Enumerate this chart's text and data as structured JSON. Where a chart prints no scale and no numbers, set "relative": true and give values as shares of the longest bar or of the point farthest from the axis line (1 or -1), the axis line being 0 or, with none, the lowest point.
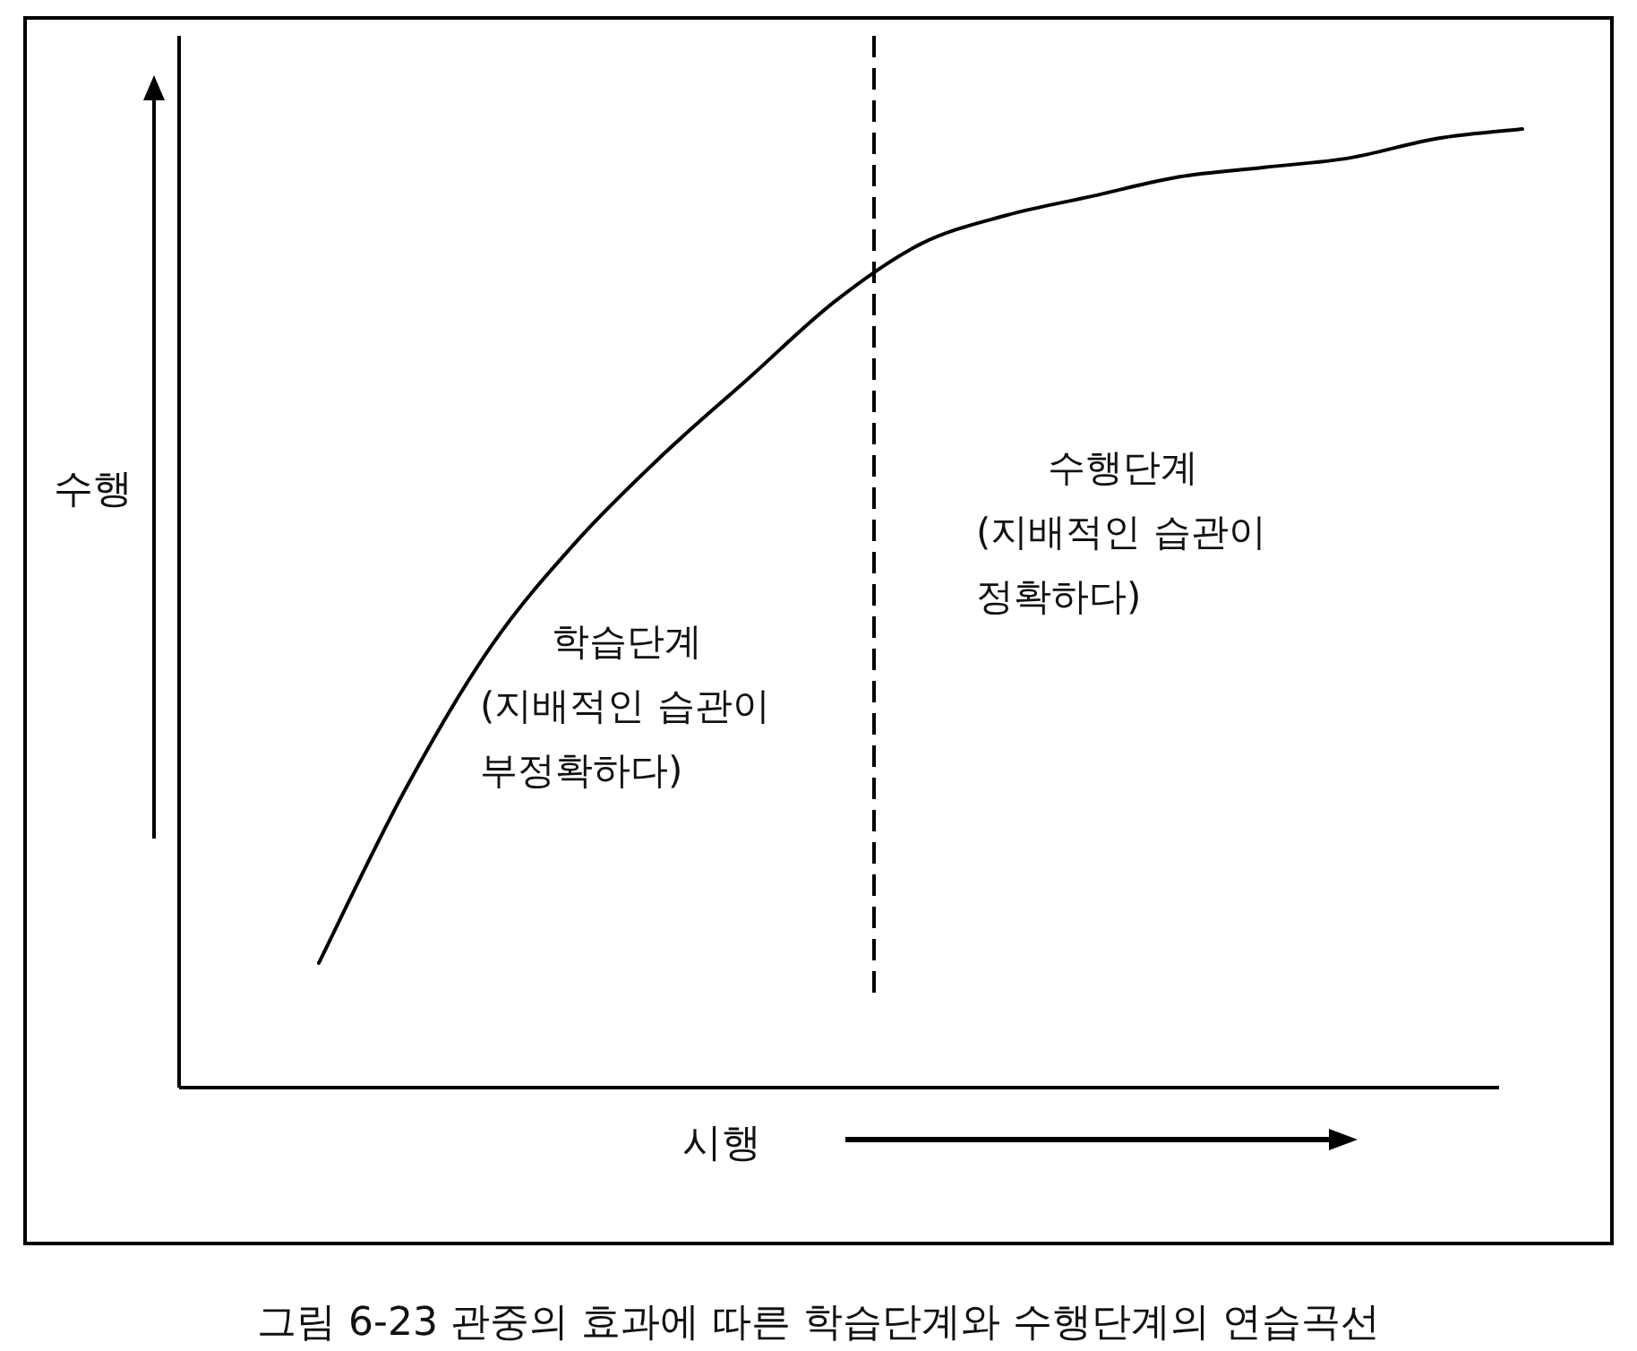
{
  "chart_data": {
    "type": "line",
    "relative": true,
    "title": "그림 6-23 관중의 효과에 따른 학습단계와 수행단계의 연습곡선",
    "xlabel": "시행",
    "ylabel": "수행",
    "categories": [
      null,
      null,
      null,
      null,
      null,
      null,
      null,
      null,
      null,
      null,
      null,
      null,
      null,
      null,
      null
    ],
    "values": [
      0.13,
      0.31,
      0.46,
      0.57,
      0.66,
      0.74,
      0.82,
      0.88,
      0.91,
      0.93,
      0.95,
      0.96,
      0.97,
      0.99,
      1
    ],
    "color": "#000000",
    "line_style": "solid",
    "annotations": [
      "학습단계\n(지배적인 습관이\n부정확하다)",
      "수행단계\n(지배적인 습관이\n정확하다)"
    ]
  }
}
